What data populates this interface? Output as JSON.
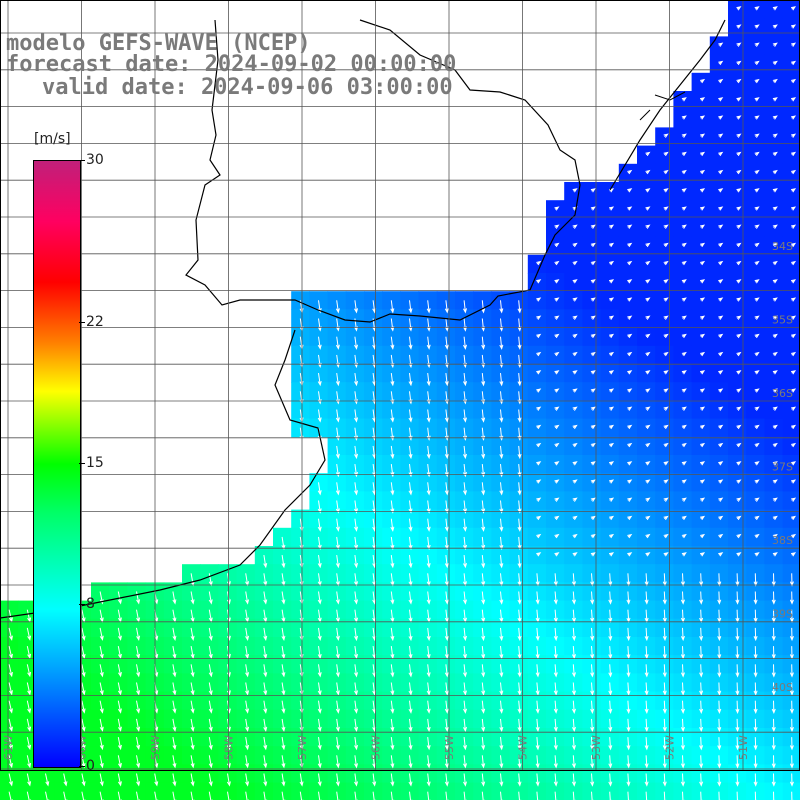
{
  "header": {
    "line1": "modelo GEFS-WAVE (NCEP)",
    "line2": "forecast date: 2024-09-02 00:00:00",
    "line3": "valid date: 2024-09-06 03:00:00"
  },
  "colorbar": {
    "units": "[m/s]",
    "ticks": [
      {
        "label": "30",
        "value": 30
      },
      {
        "label": "22",
        "value": 22
      },
      {
        "label": "15",
        "value": 15
      },
      {
        "label": "8",
        "value": 8
      },
      {
        "label": "0",
        "value": 0
      }
    ],
    "min": 0,
    "max": 30
  },
  "lat_labels": [
    "34S",
    "35S",
    "36S",
    "37S",
    "38S",
    "39S",
    "40S"
  ],
  "lon_labels": [
    "61W",
    "60W",
    "59W",
    "58W",
    "57W",
    "56W",
    "55W",
    "54W",
    "53W",
    "52W",
    "51W"
  ],
  "colors": {
    "land": "#ffffff",
    "grid": "#555555",
    "coast": "#000000",
    "arrows": "#ffffff",
    "label_gray": "#7a7a7a"
  }
}
